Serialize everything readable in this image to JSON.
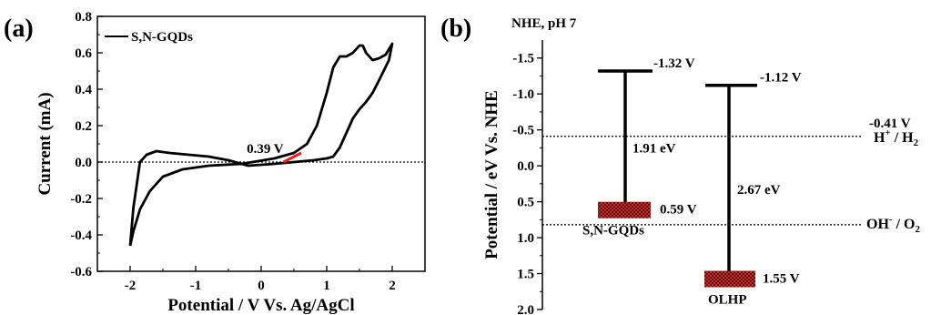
{
  "chart_data": [
    {
      "type": "line",
      "panel_label": "(a)",
      "xlabel": "Potential / V Vs. Ag/AgCl",
      "ylabel": "Current (mA)",
      "xlim": [
        -2.5,
        2.5
      ],
      "ylim": [
        -0.6,
        0.8
      ],
      "x_ticks": [
        "-2",
        "-1",
        "0",
        "1",
        "2"
      ],
      "y_ticks": [
        "-0.6",
        "-0.4",
        "-0.2",
        "0.0",
        "0.2",
        "0.4",
        "0.6",
        "0.8"
      ],
      "legend": {
        "label": "S,N-GQDs",
        "placement": "top-left"
      },
      "zero_line": true,
      "onset_label": "0.39 V",
      "onset_x": 0.39,
      "accent_color": "#e8211a",
      "series": [
        {
          "name": "S,N-GQDs",
          "x": [
            -2.0,
            -1.95,
            -1.85,
            -1.7,
            -1.5,
            -1.2,
            -0.8,
            -0.3,
            0.2,
            0.5,
            0.7,
            0.85,
            1.0,
            1.1,
            1.2,
            1.3,
            1.4,
            1.45,
            1.5,
            1.55,
            1.6,
            1.7,
            1.8,
            1.9,
            1.95,
            2.0,
            1.95,
            1.8,
            1.7,
            1.6,
            1.5,
            1.4,
            1.3,
            1.2,
            1.1,
            1.0,
            0.8,
            0.5,
            0.2,
            -0.2,
            -0.5,
            -0.8,
            -1.1,
            -1.4,
            -1.6,
            -1.75,
            -1.85,
            -1.95,
            -2.0
          ],
          "y": [
            -0.46,
            -0.38,
            -0.26,
            -0.16,
            -0.08,
            -0.04,
            -0.02,
            -0.01,
            0.02,
            0.05,
            0.1,
            0.2,
            0.38,
            0.52,
            0.58,
            0.58,
            0.6,
            0.62,
            0.64,
            0.64,
            0.6,
            0.56,
            0.57,
            0.59,
            0.62,
            0.65,
            0.56,
            0.45,
            0.38,
            0.33,
            0.29,
            0.24,
            0.16,
            0.08,
            0.03,
            0.02,
            0.01,
            0.0,
            -0.01,
            -0.02,
            0.01,
            0.03,
            0.04,
            0.05,
            0.06,
            0.04,
            0.0,
            -0.25,
            -0.46
          ]
        }
      ]
    },
    {
      "type": "bar",
      "panel_label": "(b)",
      "ylabel": "Potential / eV Vs. NHE",
      "scale_label": "NHE, pH 7",
      "ylim": [
        -1.75,
        2.0
      ],
      "y_inverted": true,
      "y_ticks": [
        "-1.5",
        "-1.0",
        "-0.5",
        "0.0",
        "0.5",
        "1.0",
        "1.5",
        "2.0"
      ],
      "materials": [
        {
          "name": "S,N-GQDs",
          "cb": -1.32,
          "vb": 0.59,
          "cb_label": "-1.32 V",
          "vb_label": "0.59 V",
          "gap_label": "1.91 eV"
        },
        {
          "name": "OLHP",
          "cb": -1.12,
          "vb": 1.55,
          "cb_label": "-1.12 V",
          "vb_label": "1.55 V",
          "gap_label": "2.67 eV"
        }
      ],
      "reference_lines": [
        {
          "value": -0.41,
          "value_label": "-0.41 V",
          "couple": "H",
          "couple_sup": "+",
          "couple_mid": " / H",
          "couple_sub": "2"
        },
        {
          "value": 0.82,
          "value_label": "",
          "couple": "OH",
          "couple_sup": "-",
          "couple_mid": " / O",
          "couple_sub": "2"
        }
      ],
      "vb_fill_color": "#a01818"
    }
  ]
}
